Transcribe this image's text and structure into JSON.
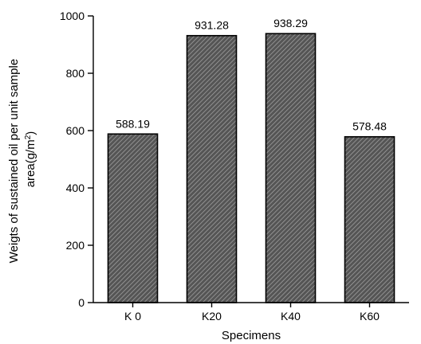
{
  "chart_data": {
    "type": "bar",
    "categories": [
      "K 0",
      "K20",
      "K40",
      "K60"
    ],
    "values": [
      588.19,
      931.28,
      938.29,
      578.48
    ],
    "value_labels": [
      "588.19",
      "931.28",
      "938.29",
      "578.48"
    ],
    "xlabel": "Specimens",
    "ylabel_line1": "Weigts of sustained oil per unit sample",
    "ylabel_line2_prefix": "area(g/m",
    "ylabel_line2_sup": "2",
    "ylabel_line2_suffix": ")",
    "ylim": [
      0,
      1000
    ],
    "yticks": [
      0,
      200,
      400,
      600,
      800,
      1000
    ],
    "ytick_labels": [
      "0",
      "200",
      "400",
      "600",
      "800",
      "1000"
    ],
    "bar_fill": "#555555",
    "hatch_color": "#a8a8a8",
    "grid": false,
    "legend": "none"
  }
}
